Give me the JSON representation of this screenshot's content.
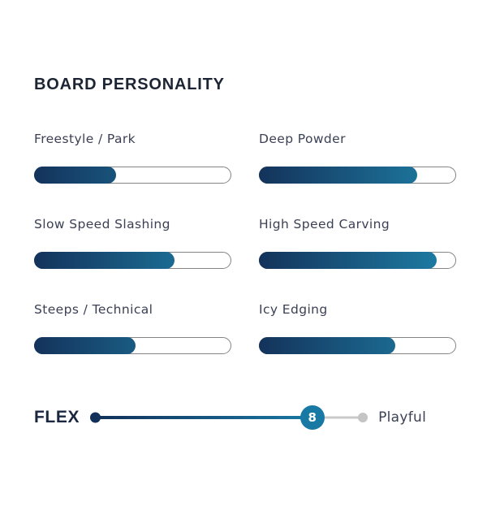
{
  "header": {
    "title": "BOARD PERSONALITY"
  },
  "personality": {
    "traits": [
      {
        "label": "Freestyle / Park",
        "value": 4,
        "max": 10,
        "percent": 41
      },
      {
        "label": "Deep Powder",
        "value": 8,
        "max": 10,
        "percent": 80
      },
      {
        "label": "Slow Speed Slashing",
        "value": 7,
        "max": 10,
        "percent": 71
      },
      {
        "label": "High Speed Carving",
        "value": 9,
        "max": 10,
        "percent": 90
      },
      {
        "label": "Steeps / Technical",
        "value": 5,
        "max": 10,
        "percent": 51
      },
      {
        "label": "Icy Edging",
        "value": 7,
        "max": 10,
        "percent": 69
      }
    ]
  },
  "flex": {
    "label": "FLEX",
    "value": "8",
    "max": 10,
    "percent": 80,
    "descriptor": "Playful"
  },
  "chart_data": {
    "type": "bar",
    "title": "BOARD PERSONALITY",
    "categories": [
      "Freestyle / Park",
      "Deep Powder",
      "Slow Speed Slashing",
      "High Speed Carving",
      "Steeps / Technical",
      "Icy Edging"
    ],
    "values": [
      4,
      8,
      7,
      9,
      5,
      7
    ],
    "value_max": 10,
    "layout": "two-column horizontal progress bars, gradient fill left-to-right",
    "flex_scale": {
      "label": "FLEX",
      "value": 8,
      "max": 10,
      "descriptor": "Playful"
    }
  },
  "colors": {
    "bar_gradient_start": "#14335b",
    "bar_gradient_end": "#1e81a8",
    "track_border": "#848484",
    "slider_knob": "#1879a4",
    "slider_start_dot": "#12305a",
    "slider_inactive": "#c9c9c9",
    "title_text": "#1d2433",
    "label_text": "#3b4054"
  }
}
